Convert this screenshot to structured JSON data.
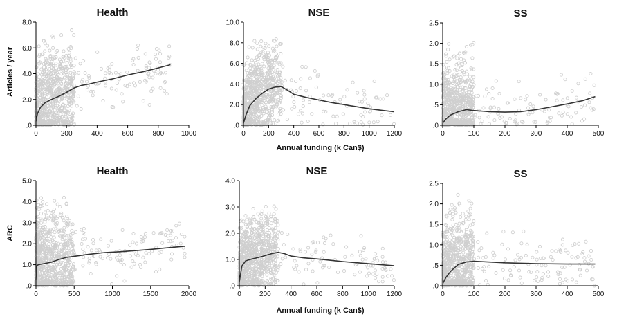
{
  "colors": {
    "points": "#cfcfcf",
    "fit_line": "#333333",
    "axis": "#000000",
    "text": "#111111"
  },
  "axis_titles": {
    "row0_y": "Articles / year",
    "row1_y": "ARC",
    "x": "Annual funding (k Can$)"
  },
  "chart_data": [
    {
      "type": "scatter",
      "title": "Health",
      "xlim": [
        0,
        1000
      ],
      "ylim": [
        0,
        8
      ],
      "xticks": [
        0,
        200,
        400,
        600,
        800,
        1000
      ],
      "xtick_labels": [
        "0",
        "200",
        "400",
        "600",
        "800",
        "1000"
      ],
      "yticks": [
        0,
        2,
        4,
        6,
        8
      ],
      "ytick_labels": [
        ".0",
        "2.0",
        "4.0",
        "6.0",
        "8.0"
      ],
      "grid": false,
      "series": [
        {
          "kind": "smoothed-fit",
          "x": [
            0,
            10,
            30,
            60,
            100,
            150,
            200,
            250,
            300,
            350,
            400,
            500,
            600,
            700,
            800,
            880
          ],
          "y": [
            0.3,
            0.9,
            1.4,
            1.75,
            2.0,
            2.25,
            2.55,
            2.9,
            3.1,
            3.2,
            3.35,
            3.6,
            3.9,
            4.15,
            4.45,
            4.7
          ]
        }
      ],
      "scatter_cloud": {
        "x_max": 880,
        "y_max": 7.4,
        "dense_x_max": 250
      }
    },
    {
      "type": "scatter",
      "title": "NSE",
      "xlim": [
        0,
        1200
      ],
      "ylim": [
        0,
        10
      ],
      "xticks": [
        0,
        200,
        400,
        600,
        800,
        1000,
        1200
      ],
      "xtick_labels": [
        "0",
        "200",
        "400",
        "600",
        "800",
        "1000",
        "1200"
      ],
      "yticks": [
        0,
        2,
        4,
        6,
        8,
        10
      ],
      "ytick_labels": [
        ".0",
        "2.0",
        "4.0",
        "6.0",
        "8.0",
        "10.0"
      ],
      "grid": false,
      "series": [
        {
          "kind": "smoothed-fit",
          "x": [
            0,
            20,
            50,
            100,
            150,
            200,
            250,
            300,
            350,
            400,
            500,
            600,
            700,
            800,
            900,
            1000,
            1100,
            1200
          ],
          "y": [
            0.2,
            1.0,
            1.9,
            2.6,
            3.1,
            3.5,
            3.7,
            3.75,
            3.4,
            3.0,
            2.7,
            2.45,
            2.2,
            2.0,
            1.8,
            1.6,
            1.45,
            1.3
          ]
        }
      ],
      "scatter_cloud": {
        "x_max": 1200,
        "y_max": 8.5,
        "dense_x_max": 300
      }
    },
    {
      "type": "scatter",
      "title": "SS",
      "xlim": [
        0,
        500
      ],
      "ylim": [
        0,
        2.5
      ],
      "xticks": [
        0,
        100,
        200,
        300,
        400,
        500
      ],
      "xtick_labels": [
        "0",
        "100",
        "200",
        "300",
        "400",
        "500"
      ],
      "yticks": [
        0,
        0.5,
        1,
        1.5,
        2,
        2.5
      ],
      "ytick_labels": [
        ".0",
        ".5",
        "1.0",
        "1.5",
        "2.0",
        "2.5"
      ],
      "grid": false,
      "series": [
        {
          "kind": "smoothed-fit",
          "x": [
            0,
            10,
            25,
            50,
            75,
            100,
            150,
            200,
            250,
            300,
            350,
            400,
            450,
            490
          ],
          "y": [
            0.05,
            0.15,
            0.25,
            0.33,
            0.38,
            0.36,
            0.33,
            0.32,
            0.33,
            0.38,
            0.45,
            0.52,
            0.6,
            0.7
          ]
        }
      ],
      "scatter_cloud": {
        "x_max": 490,
        "y_max": 2.3,
        "dense_x_max": 100
      }
    },
    {
      "type": "scatter",
      "title": "Health",
      "xlim": [
        0,
        2000
      ],
      "ylim": [
        0,
        5
      ],
      "xticks": [
        0,
        500,
        1000,
        1500,
        2000
      ],
      "xtick_labels": [
        "0",
        "500",
        "1000",
        "1500",
        "2000"
      ],
      "yticks": [
        0,
        1,
        2,
        3,
        4,
        5
      ],
      "ytick_labels": [
        ".0",
        "1.0",
        "2.0",
        "3.0",
        "4.0",
        "5.0"
      ],
      "grid": false,
      "series": [
        {
          "kind": "smoothed-fit",
          "x": [
            0,
            10,
            30,
            100,
            200,
            300,
            400,
            500,
            700,
            900,
            1100,
            1300,
            1500,
            1700,
            1950
          ],
          "y": [
            0.3,
            0.95,
            1.0,
            1.05,
            1.12,
            1.25,
            1.35,
            1.4,
            1.5,
            1.58,
            1.62,
            1.67,
            1.73,
            1.8,
            1.88
          ]
        }
      ],
      "scatter_cloud": {
        "x_max": 1950,
        "y_max": 4.3,
        "dense_x_max": 500
      }
    },
    {
      "type": "scatter",
      "title": "NSE",
      "xlim": [
        0,
        1200
      ],
      "ylim": [
        0,
        4
      ],
      "xticks": [
        0,
        200,
        400,
        600,
        800,
        1000,
        1200
      ],
      "xtick_labels": [
        "0",
        "200",
        "400",
        "600",
        "800",
        "1000",
        "1200"
      ],
      "yticks": [
        0,
        1,
        2,
        3,
        4
      ],
      "ytick_labels": [
        ".0",
        "1.0",
        "2.0",
        "3.0",
        "4.0"
      ],
      "grid": false,
      "series": [
        {
          "kind": "smoothed-fit",
          "x": [
            0,
            20,
            50,
            100,
            150,
            200,
            250,
            300,
            350,
            400,
            500,
            600,
            700,
            800,
            900,
            1000,
            1100,
            1200
          ],
          "y": [
            0.15,
            0.75,
            0.95,
            1.02,
            1.08,
            1.15,
            1.22,
            1.27,
            1.22,
            1.13,
            1.06,
            1.02,
            0.97,
            0.92,
            0.88,
            0.84,
            0.8,
            0.76
          ]
        }
      ],
      "scatter_cloud": {
        "x_max": 1200,
        "y_max": 3.1,
        "dense_x_max": 300
      }
    },
    {
      "type": "scatter",
      "title": "SS",
      "xlim": [
        0,
        500
      ],
      "ylim": [
        0,
        2.5
      ],
      "xticks": [
        0,
        100,
        200,
        300,
        400,
        500
      ],
      "xtick_labels": [
        "0",
        "100",
        "200",
        "300",
        "400",
        "500"
      ],
      "yticks": [
        0,
        0.5,
        1,
        1.5,
        2,
        2.5
      ],
      "ytick_labels": [
        ".0",
        ".5",
        "1.0",
        "1.5",
        "2.0",
        "2.5"
      ],
      "grid": false,
      "series": [
        {
          "kind": "smoothed-fit",
          "x": [
            0,
            10,
            25,
            50,
            75,
            100,
            150,
            200,
            250,
            300,
            400,
            490
          ],
          "y": [
            0.05,
            0.2,
            0.35,
            0.52,
            0.58,
            0.6,
            0.58,
            0.56,
            0.55,
            0.54,
            0.53,
            0.53
          ]
        }
      ],
      "scatter_cloud": {
        "x_max": 490,
        "y_max": 2.4,
        "dense_x_max": 100
      }
    }
  ]
}
